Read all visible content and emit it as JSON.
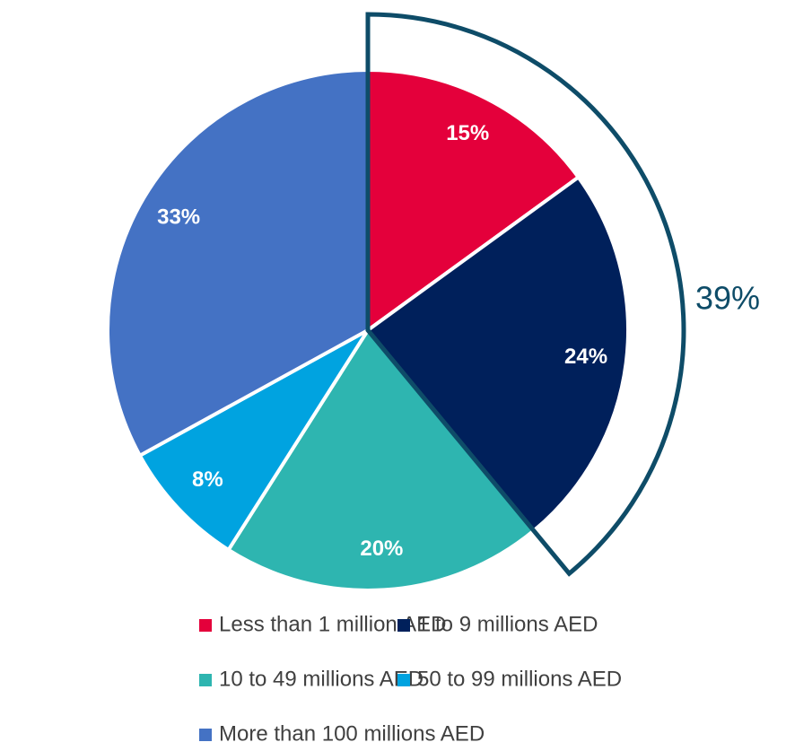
{
  "chart_data": {
    "type": "pie",
    "categories": [
      "Less than 1 million AED",
      "1 to 9 millions AED",
      "10 to 49 millions AED",
      "50 to 99 millions AED",
      "More than 100 millions AED"
    ],
    "values": [
      15,
      24,
      20,
      8,
      33
    ],
    "value_labels": [
      "15%",
      "24%",
      "20%",
      "8%",
      "33%"
    ],
    "colors": [
      "#e4003b",
      "#00205b",
      "#2eb5b0",
      "#00a3e0",
      "#4472c4"
    ],
    "annotation": {
      "value": 39,
      "label": "39%",
      "color": "#0e4c68"
    }
  }
}
